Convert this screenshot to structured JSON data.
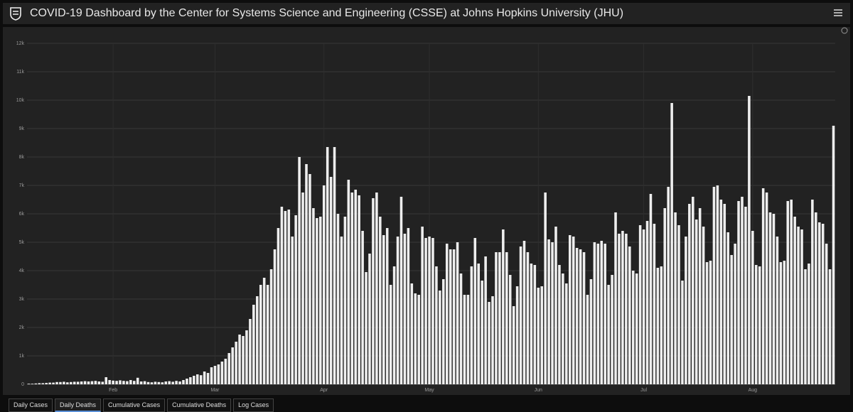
{
  "header": {
    "title": "COVID-19 Dashboard by the Center for Systems Science and Engineering (CSSE) at Johns Hopkins University (JHU)"
  },
  "tabs": [
    "Daily Cases",
    "Daily Deaths",
    "Cumulative Cases",
    "Cumulative Deaths",
    "Log Cases"
  ],
  "chart_data": {
    "type": "bar",
    "color": "#eeeeee",
    "grid": true,
    "ylim": [
      0,
      12000
    ],
    "yticks": [
      0,
      {
        "value": 1000,
        "label": "1k"
      },
      {
        "value": 2000,
        "label": "2k"
      },
      {
        "value": 3000,
        "label": "3k"
      },
      {
        "value": 4000,
        "label": "4k"
      },
      {
        "value": 5000,
        "label": "5k"
      },
      {
        "value": 6000,
        "label": "6k"
      },
      {
        "value": 7000,
        "label": "7k"
      },
      {
        "value": 8000,
        "label": "8k"
      },
      {
        "value": 9000,
        "label": "9k"
      },
      {
        "value": 10000,
        "label": "10k"
      },
      {
        "value": 11000,
        "label": "11k"
      },
      {
        "value": 12000,
        "label": "12k"
      }
    ],
    "categories": [
      null,
      null,
      null,
      null,
      null,
      null,
      null,
      null,
      null,
      null,
      null,
      null,
      null,
      null,
      null,
      null,
      null,
      null,
      null,
      null,
      null,
      null,
      null,
      null,
      "Feb",
      null,
      null,
      null,
      null,
      null,
      null,
      null,
      null,
      null,
      null,
      null,
      null,
      null,
      null,
      null,
      null,
      null,
      null,
      null,
      null,
      null,
      null,
      null,
      null,
      null,
      null,
      null,
      null,
      "Mar",
      null,
      null,
      null,
      null,
      null,
      null,
      null,
      null,
      null,
      null,
      null,
      null,
      null,
      null,
      null,
      null,
      null,
      null,
      null,
      null,
      null,
      null,
      null,
      null,
      null,
      null,
      null,
      null,
      null,
      null,
      "Apr",
      null,
      null,
      null,
      null,
      null,
      null,
      null,
      null,
      null,
      null,
      null,
      null,
      null,
      null,
      null,
      null,
      null,
      null,
      null,
      null,
      null,
      null,
      null,
      null,
      null,
      null,
      null,
      null,
      null,
      "May",
      null,
      null,
      null,
      null,
      null,
      null,
      null,
      null,
      null,
      null,
      null,
      null,
      null,
      null,
      null,
      null,
      null,
      null,
      null,
      null,
      null,
      null,
      null,
      null,
      null,
      null,
      null,
      null,
      null,
      null,
      "Jun",
      null,
      null,
      null,
      null,
      null,
      null,
      null,
      null,
      null,
      null,
      null,
      null,
      null,
      null,
      null,
      null,
      null,
      null,
      null,
      null,
      null,
      null,
      null,
      null,
      null,
      null,
      null,
      null,
      null,
      "Jul",
      null,
      null,
      null,
      null,
      null,
      null,
      null,
      null,
      null,
      null,
      null,
      null,
      null,
      null,
      null,
      null,
      null,
      null,
      null,
      null,
      null,
      null,
      null,
      null,
      null,
      null,
      null,
      null,
      null,
      null,
      "Aug",
      null,
      null,
      null,
      null,
      null,
      null,
      null,
      null,
      null,
      null,
      null,
      null,
      null,
      null,
      null,
      null,
      null,
      null,
      null,
      null,
      null,
      null,
      null
    ],
    "values": [
      20,
      20,
      30,
      40,
      40,
      50,
      60,
      60,
      80,
      80,
      90,
      70,
      80,
      90,
      90,
      100,
      110,
      100,
      110,
      120,
      100,
      90,
      250,
      150,
      130,
      120,
      140,
      120,
      110,
      150,
      120,
      230,
      100,
      110,
      80,
      70,
      90,
      80,
      70,
      100,
      110,
      90,
      120,
      100,
      150,
      200,
      250,
      300,
      350,
      320,
      450,
      400,
      600,
      650,
      700,
      800,
      900,
      1100,
      1300,
      1500,
      1750,
      1700,
      1900,
      2300,
      2800,
      3100,
      3500,
      3750,
      3500,
      4050,
      4750,
      5500,
      6250,
      6100,
      6150,
      5200,
      5950,
      8000,
      6750,
      7750,
      7400,
      6200,
      5850,
      5900,
      7000,
      8350,
      7300,
      8350,
      6000,
      5200,
      5900,
      7200,
      6750,
      6850,
      6650,
      5400,
      3950,
      4600,
      6550,
      6750,
      5900,
      5250,
      5500,
      3500,
      4150,
      5200,
      6600,
      5300,
      5500,
      3550,
      3200,
      3150,
      5550,
      5150,
      5200,
      5150,
      4150,
      3300,
      3700,
      4950,
      4750,
      4750,
      5000,
      3900,
      3150,
      3150,
      4150,
      5150,
      4250,
      3650,
      4500,
      2900,
      3100,
      4650,
      4650,
      5450,
      4650,
      3850,
      2750,
      3450,
      4850,
      5050,
      4650,
      4250,
      4200,
      3400,
      3450,
      6750,
      5100,
      5000,
      5550,
      4200,
      3900,
      3550,
      5250,
      5200,
      4800,
      4750,
      4650,
      3150,
      3700,
      5000,
      4950,
      5050,
      4950,
      3500,
      3850,
      6050,
      5300,
      5400,
      5300,
      4850,
      4000,
      3900,
      5600,
      5450,
      5750,
      6700,
      5650,
      4100,
      4150,
      6200,
      6950,
      9900,
      6050,
      5600,
      3650,
      5200,
      6350,
      6600,
      5800,
      6200,
      5550,
      4300,
      4350,
      6950,
      7000,
      6500,
      6350,
      5350,
      4550,
      4950,
      6450,
      6600,
      6250,
      10150,
      5400,
      4200,
      4150,
      6900,
      6750,
      6050,
      6000,
      5200,
      4300,
      4350,
      6450,
      6500,
      5900,
      5550,
      5450,
      4050,
      4250,
      6500,
      6050,
      5700,
      5650,
      4950,
      4050,
      9100
    ]
  }
}
